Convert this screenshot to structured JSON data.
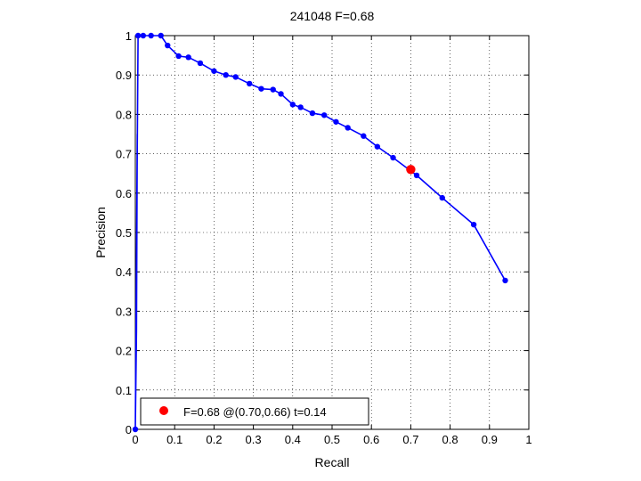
{
  "chart_data": {
    "type": "line",
    "title": "241048 F=0.68",
    "xlabel": "Recall",
    "ylabel": "Precision",
    "xlim": [
      0,
      1
    ],
    "ylim": [
      0,
      1
    ],
    "xticks": [
      0,
      0.1,
      0.2,
      0.3,
      0.4,
      0.5,
      0.6,
      0.7,
      0.8,
      0.9,
      1
    ],
    "xtick_labels": [
      "0",
      "0.1",
      "0.2",
      "0.3",
      "0.4",
      "0.5",
      "0.6",
      "0.7",
      "0.8",
      "0.9",
      "1"
    ],
    "yticks": [
      0,
      0.1,
      0.2,
      0.3,
      0.4,
      0.5,
      0.6,
      0.7,
      0.8,
      0.9,
      1
    ],
    "ytick_labels": [
      "0",
      "0.1",
      "0.2",
      "0.3",
      "0.4",
      "0.5",
      "0.6",
      "0.7",
      "0.8",
      "0.9",
      "1"
    ],
    "grid": true,
    "legend_position": "bottom-left",
    "series": [
      {
        "color": "#0000ff",
        "marker": "dot",
        "line_only_points": [
          [
            0.0,
            0.0
          ],
          [
            0.003,
            0.25
          ],
          [
            0.005,
            0.75
          ]
        ],
        "x": [
          0.0,
          0.007,
          0.02,
          0.04,
          0.065,
          0.082,
          0.11,
          0.135,
          0.165,
          0.2,
          0.23,
          0.255,
          0.29,
          0.32,
          0.35,
          0.37,
          0.4,
          0.42,
          0.45,
          0.48,
          0.51,
          0.54,
          0.58,
          0.615,
          0.655,
          0.715,
          0.78,
          0.86,
          0.94
        ],
        "y": [
          0.0,
          1.0,
          1.0,
          1.0,
          1.0,
          0.975,
          0.948,
          0.945,
          0.93,
          0.91,
          0.9,
          0.895,
          0.878,
          0.865,
          0.863,
          0.852,
          0.825,
          0.818,
          0.803,
          0.798,
          0.781,
          0.766,
          0.745,
          0.718,
          0.69,
          0.645,
          0.588,
          0.52,
          0.378
        ]
      }
    ],
    "best_point": {
      "x": 0.7,
      "y": 0.66,
      "color": "#ff0000"
    },
    "legend": {
      "label": "F=0.68 @(0.70,0.66) t=0.14",
      "marker_color": "#ff0000"
    }
  }
}
